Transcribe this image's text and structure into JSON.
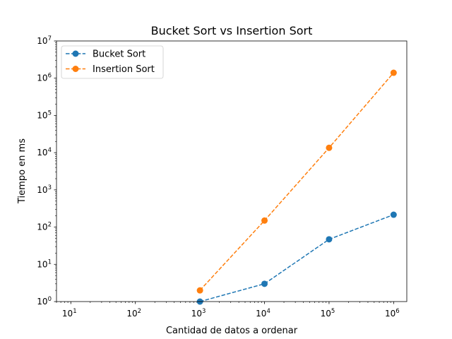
{
  "chart_data": {
    "type": "line",
    "title": "Bucket Sort vs Insertion Sort",
    "xlabel": "Cantidad de datos a ordenar",
    "ylabel": "Tiempo en ms",
    "x_scale": "log",
    "y_scale": "log",
    "xlim": [
      6,
      1600000
    ],
    "ylim": [
      1,
      10000000
    ],
    "x": [
      1000,
      10000,
      100000,
      1000000
    ],
    "x_ticks": [
      {
        "value": 10,
        "base": "10",
        "exp": "1"
      },
      {
        "value": 100,
        "base": "10",
        "exp": "2"
      },
      {
        "value": 1000,
        "base": "10",
        "exp": "3"
      },
      {
        "value": 10000,
        "base": "10",
        "exp": "4"
      },
      {
        "value": 100000,
        "base": "10",
        "exp": "5"
      },
      {
        "value": 1000000,
        "base": "10",
        "exp": "6"
      }
    ],
    "y_ticks": [
      {
        "value": 1,
        "base": "10",
        "exp": "0"
      },
      {
        "value": 10,
        "base": "10",
        "exp": "1"
      },
      {
        "value": 100,
        "base": "10",
        "exp": "2"
      },
      {
        "value": 1000,
        "base": "10",
        "exp": "3"
      },
      {
        "value": 10000,
        "base": "10",
        "exp": "4"
      },
      {
        "value": 100000,
        "base": "10",
        "exp": "5"
      },
      {
        "value": 1000000,
        "base": "10",
        "exp": "6"
      },
      {
        "value": 10000000,
        "base": "10",
        "exp": "7"
      }
    ],
    "series": [
      {
        "name": "Bucket Sort",
        "color": "#1f77b4",
        "line_style": "dashed",
        "marker": "circle",
        "values": [
          1,
          3,
          47,
          215
        ]
      },
      {
        "name": "Insertion Sort",
        "color": "#ff7f0e",
        "line_style": "dashed",
        "marker": "circle",
        "values": [
          2,
          150,
          13500,
          1400000
        ]
      }
    ],
    "legend_position": "top-left",
    "grid": false
  }
}
